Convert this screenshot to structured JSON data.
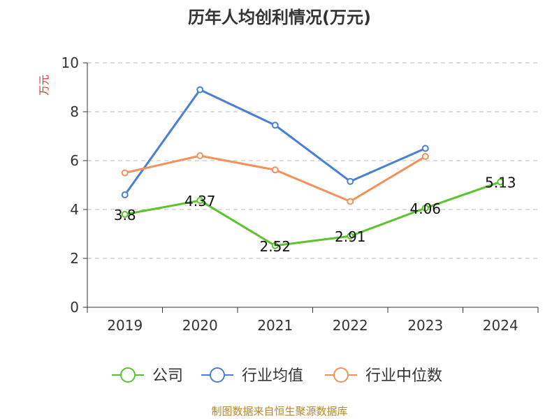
{
  "chart_data": {
    "type": "line",
    "title": "历年人均创利情况(万元)",
    "ylabel": "万元",
    "ylim": [
      0,
      10
    ],
    "yticks": [
      0,
      2,
      4,
      6,
      8,
      10
    ],
    "categories": [
      "2019",
      "2020",
      "2021",
      "2022",
      "2023",
      "2024"
    ],
    "grid": true,
    "legend_position": "bottom",
    "series": [
      {
        "name": "公司",
        "color": "#5bc42a",
        "values": [
          3.8,
          4.37,
          2.52,
          2.91,
          4.06,
          5.13
        ],
        "labels": [
          "3.8",
          "4.37",
          "2.52",
          "2.91",
          "4.06",
          "5.13"
        ]
      },
      {
        "name": "行业均值",
        "color": "#4a7fd8",
        "values": [
          4.6,
          8.9,
          7.45,
          5.15,
          6.5,
          null
        ]
      },
      {
        "name": "行业中位数",
        "color": "#f5905a",
        "values": [
          5.5,
          6.2,
          5.62,
          4.33,
          6.17,
          null
        ]
      }
    ],
    "source": "制图数据来自恒生聚源数据库"
  }
}
